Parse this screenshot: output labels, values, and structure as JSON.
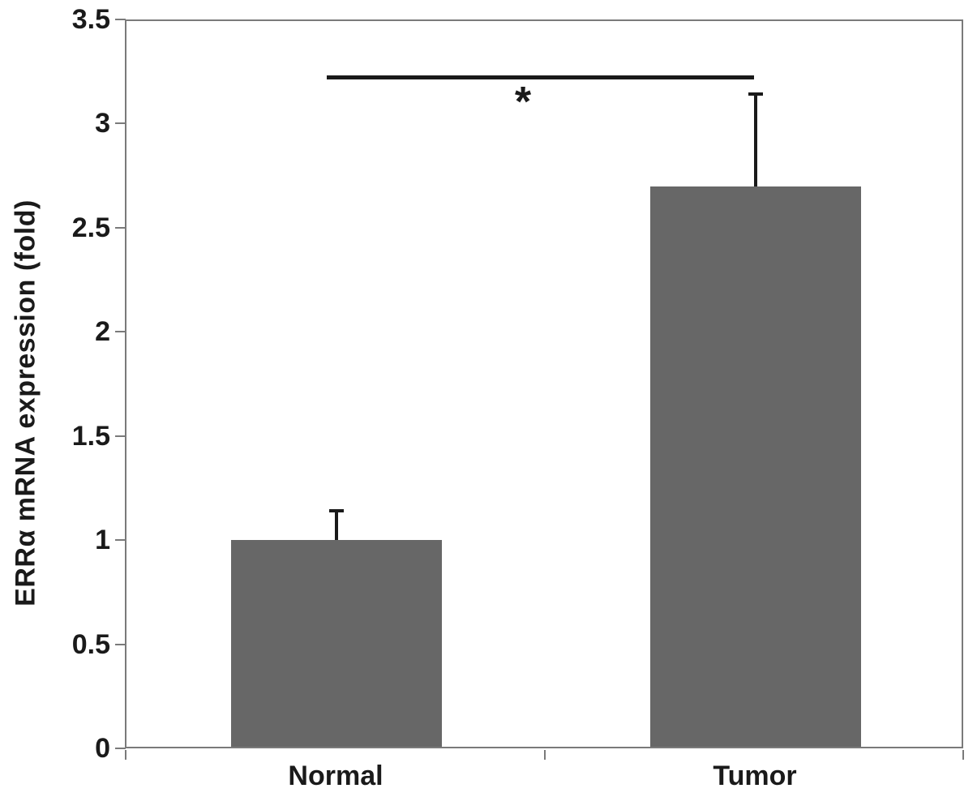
{
  "chart_data": {
    "type": "bar",
    "title": "",
    "categories": [
      "Normal",
      "Tumor"
    ],
    "values": [
      1.0,
      2.7
    ],
    "error_bars_plus": [
      0.15,
      0.45
    ],
    "ylabel": "ERRα mRNA expression (fold)",
    "xlabel": "",
    "ylim": [
      0,
      3.5
    ],
    "ytick_step": 0.5,
    "yticks": [
      "3.5",
      "3",
      "2.5",
      "2",
      "1.5",
      "1",
      "0.5",
      "0"
    ],
    "grid": false,
    "legend": "none",
    "bar_color": "#676767",
    "frame_color": "#7a7a7a",
    "annotation_color": "#1a1a1a",
    "background": "#ffffff",
    "significance": {
      "label": "*",
      "between": [
        "Normal",
        "Tumor"
      ]
    }
  }
}
